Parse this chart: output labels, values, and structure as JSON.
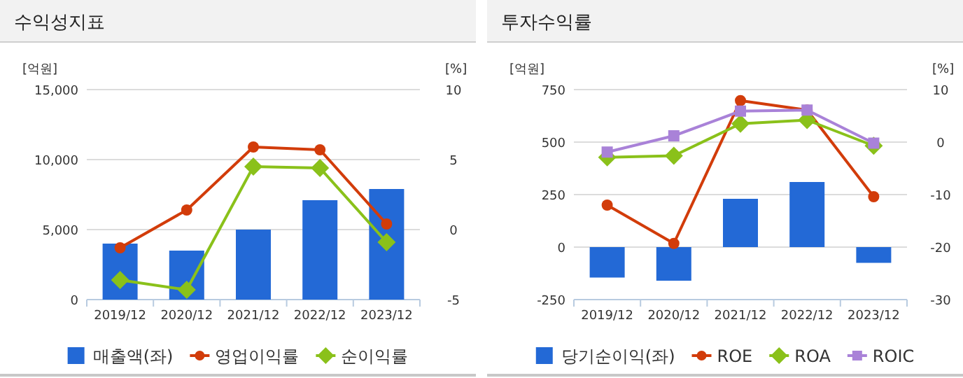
{
  "chart_data": [
    {
      "type": "bar",
      "title": "수익성지표",
      "ylabel": "[억원]",
      "y2label": "[%]",
      "categories": [
        "2019/12",
        "2020/12",
        "2021/12",
        "2022/12",
        "2023/12"
      ],
      "series": [
        {
          "name": "매출액(좌)",
          "color": "#2369d6",
          "values": [
            4000,
            3500,
            5000,
            7100,
            7900
          ]
        },
        {
          "name": "영업이익률",
          "type": "line",
          "axis": "y2",
          "marker": "circle",
          "color": "#d23c0a",
          "values": [
            -1.3,
            1.4,
            5.9,
            5.7,
            0.4
          ]
        },
        {
          "name": "순이익률",
          "type": "line",
          "axis": "y2",
          "marker": "diamond",
          "color": "#8ac11a",
          "values": [
            -3.6,
            -4.3,
            4.5,
            4.4,
            -0.9
          ]
        }
      ],
      "ylim": [
        0,
        15000
      ],
      "yticks": [
        {
          "value": 0,
          "label": "0"
        },
        {
          "value": 5000,
          "label": "5,000"
        },
        {
          "value": 10000,
          "label": "10,000"
        },
        {
          "value": 15000,
          "label": "15,000"
        }
      ],
      "y2lim": [
        -5,
        10
      ],
      "y2ticks": [
        -5,
        0,
        5,
        10
      ],
      "grid": "y",
      "legend": "bottom"
    },
    {
      "type": "bar",
      "title": "투자수익률",
      "ylabel": "[억원]",
      "y2label": "[%]",
      "categories": [
        "2019/12",
        "2020/12",
        "2021/12",
        "2022/12",
        "2023/12"
      ],
      "series": [
        {
          "name": "당기순이익(좌)",
          "color": "#2369d6",
          "values": [
            -145,
            -160,
            230,
            310,
            -75
          ]
        },
        {
          "name": "ROE",
          "type": "line",
          "axis": "y2",
          "marker": "circle",
          "color": "#d23c0a",
          "values": [
            -12,
            -19.3,
            7.9,
            6.1,
            -10.4
          ]
        },
        {
          "name": "ROA",
          "type": "line",
          "axis": "y2",
          "marker": "diamond",
          "color": "#8ac11a",
          "values": [
            -2.9,
            -2.6,
            3.5,
            4.2,
            -0.7
          ]
        },
        {
          "name": "ROIC",
          "type": "line",
          "axis": "y2",
          "marker": "square",
          "color": "#a982d8",
          "values": [
            -1.9,
            1.2,
            5.9,
            6.1,
            -0.2
          ]
        }
      ],
      "ylim": [
        -250,
        750
      ],
      "yticks": [
        -250,
        0,
        250,
        500,
        750
      ],
      "y2lim": [
        -30,
        10
      ],
      "y2ticks": [
        -30,
        -20,
        -10,
        0,
        10
      ],
      "grid": "y",
      "legend": "bottom"
    }
  ]
}
